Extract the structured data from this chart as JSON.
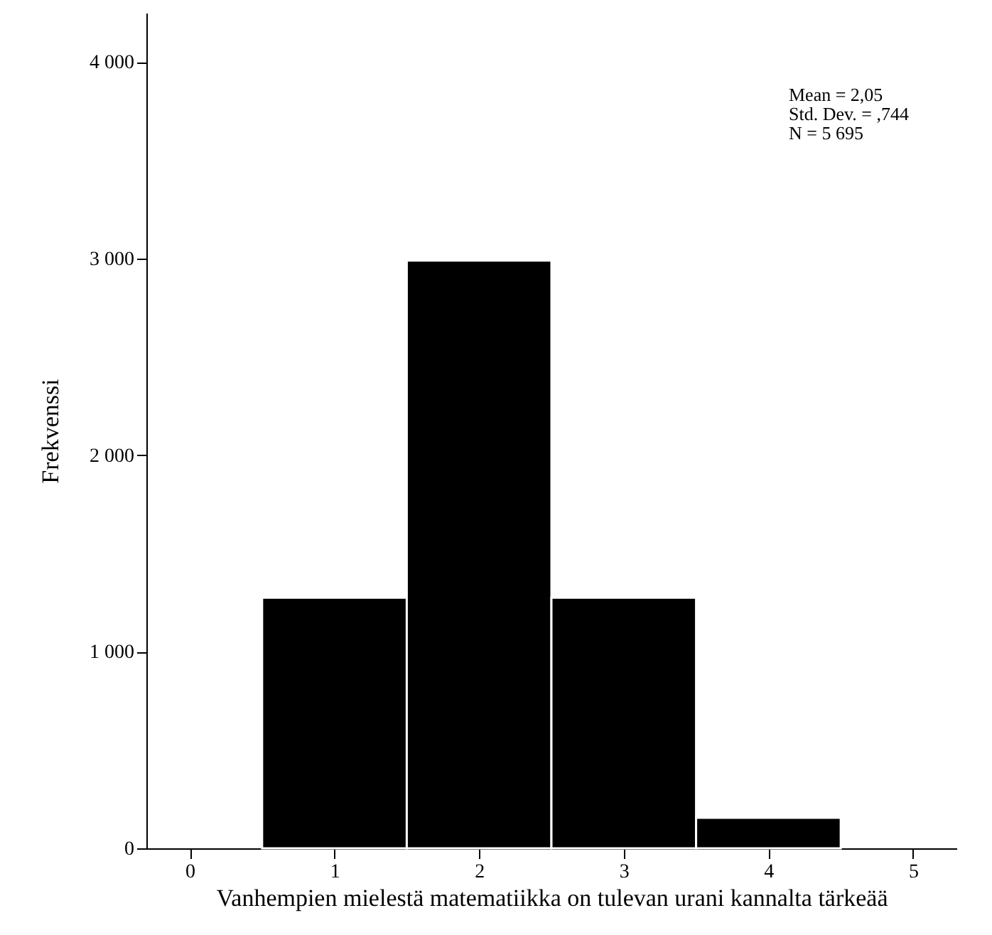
{
  "chart_data": {
    "type": "histogram",
    "xlabel": "Vanhempien mielestä matematiikka on tulevan urani kannalta tärkeää",
    "ylabel": "Frekvenssi",
    "bins": [
      0.5,
      1.5,
      2.5,
      3.5,
      4.5
    ],
    "values": [
      1275,
      2990,
      1275,
      155
    ],
    "color": "#000000",
    "xlim": [
      -0.3,
      5.3
    ],
    "xticks": [
      0,
      1,
      2,
      3,
      4,
      5
    ],
    "ylim": [
      0,
      4250
    ],
    "yticks": [
      0,
      {
        "value": 1000,
        "label": "1 000"
      },
      {
        "value": 2000,
        "label": "2 000"
      },
      {
        "value": 3000,
        "label": "3 000"
      },
      {
        "value": 4000,
        "label": "4 000"
      }
    ],
    "grid": false,
    "annotations": [
      "Mean = 2,05",
      "Std. Dev. = ,744",
      "N = 5 695"
    ]
  }
}
